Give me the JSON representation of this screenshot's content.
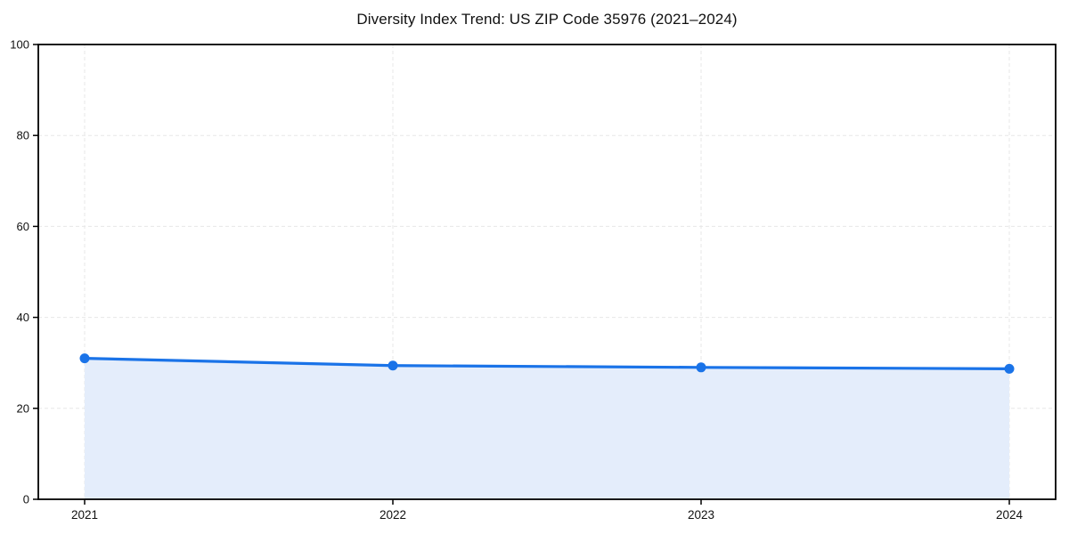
{
  "chart_data": {
    "type": "line",
    "title": "Diversity Index Trend: US ZIP Code 35976 (2021–2024)",
    "categories": [
      "2021",
      "2022",
      "2023",
      "2024"
    ],
    "series": [
      {
        "name": "Diversity Index",
        "values": [
          31.0,
          29.4,
          29.0,
          28.7
        ]
      }
    ],
    "xlabel": "",
    "ylabel": "",
    "ylim": [
      0,
      100
    ],
    "yticks": [
      0,
      20,
      40,
      60,
      80,
      100
    ],
    "grid": "dashed",
    "legend_position": "none",
    "colors": {
      "line": "#1a73e8",
      "marker": "#1a73e8",
      "area_fill": "#e4edfb",
      "grid": "#e7e7e7",
      "axis": "#000000",
      "background": "#ffffff",
      "text": "#111111"
    }
  }
}
